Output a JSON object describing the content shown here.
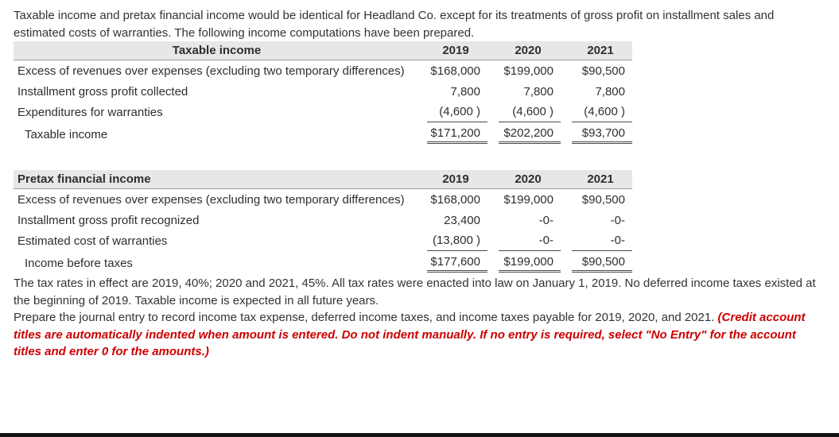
{
  "colors": {
    "instruction_red": "#cc0000",
    "table_header_bg": "#e7e7e7"
  },
  "intro": "Taxable income and pretax financial income would be identical for Headland Co. except for its treatments of gross profit on installment sales and estimated costs of warranties. The following income computations have been prepared.",
  "tables": [
    {
      "title": "Taxable income",
      "years": [
        "2019",
        "2020",
        "2021"
      ],
      "rows": [
        {
          "label": "Excess of revenues over expenses (excluding two temporary differences)",
          "values": [
            "$168,000",
            "$199,000",
            "$90,500"
          ]
        },
        {
          "label": "Installment gross profit collected",
          "values": [
            "7,800",
            "7,800",
            "7,800"
          ]
        },
        {
          "label": "Expenditures for warranties",
          "values": [
            "(4,600 )",
            "(4,600 )",
            "(4,600 )"
          ]
        }
      ],
      "total": {
        "label": "Taxable income",
        "values": [
          "$171,200",
          "$202,200",
          "$93,700"
        ]
      }
    },
    {
      "title": "Pretax financial income",
      "years": [
        "2019",
        "2020",
        "2021"
      ],
      "rows": [
        {
          "label": "Excess of revenues over expenses  (excluding two temporary differences)",
          "values": [
            "$168,000",
            "$199,000",
            "$90,500"
          ]
        },
        {
          "label": "Installment gross profit recognized",
          "values": [
            "23,400",
            "-0-",
            "-0-"
          ]
        },
        {
          "label": "Estimated cost of warranties",
          "values": [
            "(13,800 )",
            "-0-",
            "-0-"
          ]
        }
      ],
      "total": {
        "label": "Income before taxes",
        "values": [
          "$177,600",
          "$199,000",
          "$90,500"
        ]
      }
    }
  ],
  "tax_note": "The tax rates in effect are 2019, 40%; 2020 and 2021, 45%. All tax rates were enacted into law on January 1, 2019. No deferred income taxes existed at the beginning of 2019. Taxable income is expected in all future years.",
  "instruction": {
    "normal": "Prepare the journal entry to record income tax expense, deferred income taxes, and income taxes payable for 2019, 2020, and 2021. ",
    "red_italic": "(Credit account titles are automatically indented when amount is entered. Do not indent manually. If no entry is required, select \"No Entry\" for the account titles and enter 0 for the amounts.)"
  }
}
